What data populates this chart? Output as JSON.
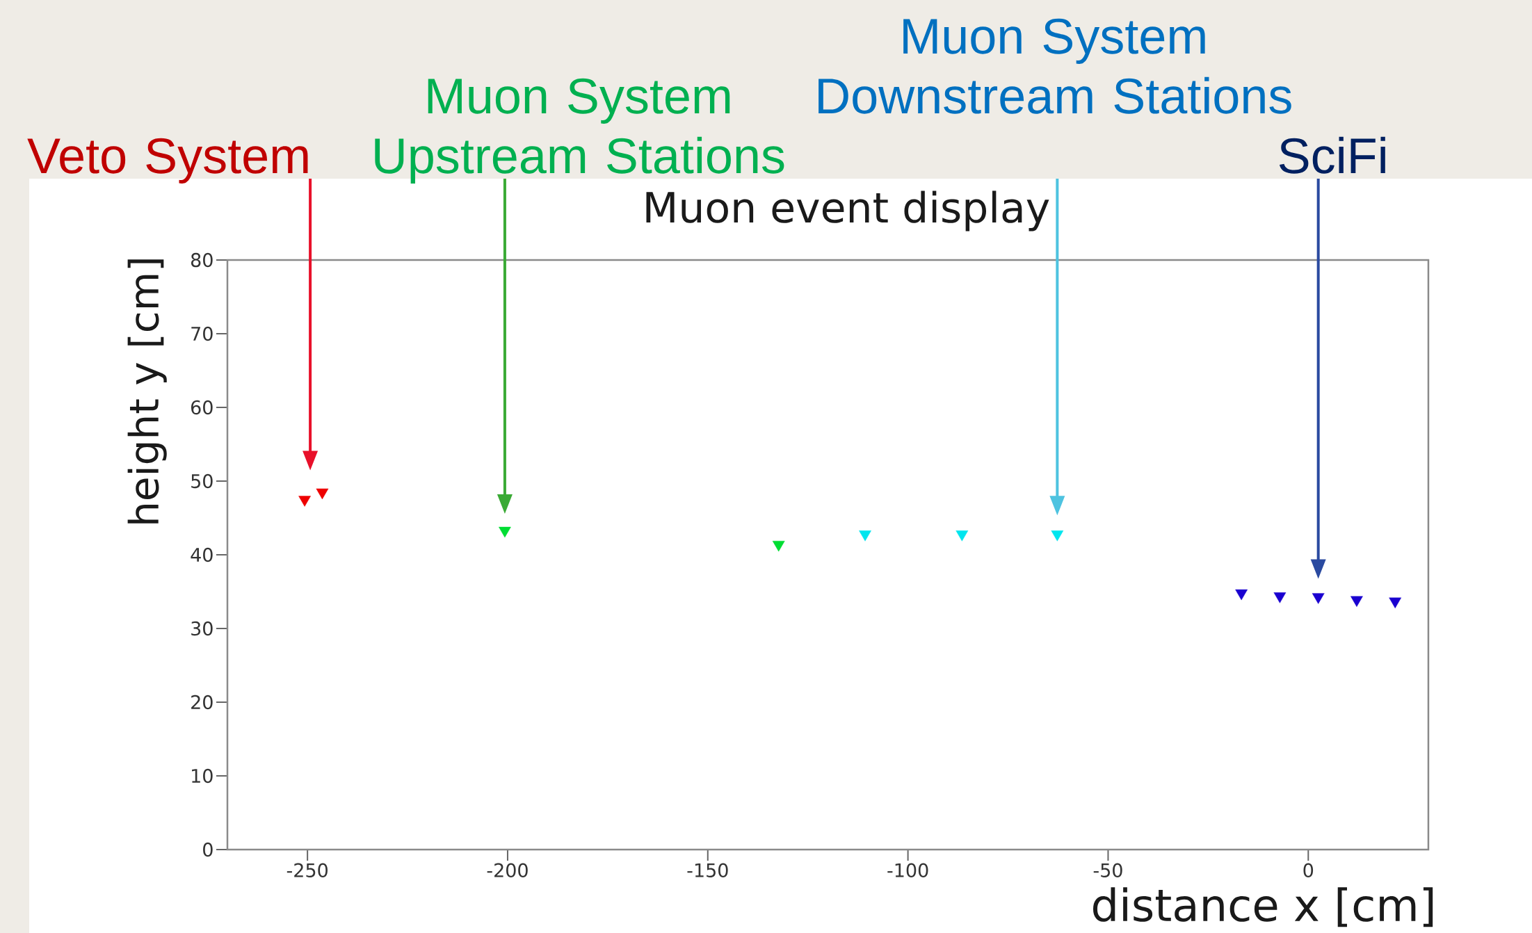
{
  "chart_data": {
    "type": "scatter",
    "title": "Muon event display",
    "xlabel": "distance x [cm]",
    "ylabel": "height y [cm]",
    "xlim": [
      -270,
      30
    ],
    "ylim": [
      0,
      80
    ],
    "xticks": [
      -250,
      -200,
      -150,
      -100,
      -50,
      0
    ],
    "yticks": [
      0,
      10,
      20,
      30,
      40,
      50,
      60,
      70,
      80
    ],
    "marker": "triangle",
    "series": [
      {
        "color": "#ee0000",
        "x": [
          -250.7,
          -246.3
        ],
        "values": [
          47.5,
          48.5
        ]
      },
      {
        "color": "#00dd33",
        "x": [
          -200.7,
          -132.3
        ],
        "values": [
          43.3,
          41.4
        ]
      },
      {
        "color": "#00e5ee",
        "x": [
          -110.7,
          -86.5,
          -62.7
        ],
        "values": [
          42.8,
          42.8,
          42.8
        ]
      },
      {
        "color": "#1a00d0",
        "x": [
          -16.7,
          -7.1,
          2.5,
          12.1,
          21.7
        ],
        "values": [
          34.8,
          34.4,
          34.3,
          33.9,
          33.7
        ]
      }
    ],
    "annotations": [
      "Veto System",
      "Muon System Upstream Stations",
      "Muon System Downstream Stations",
      "SciFi"
    ]
  }
}
